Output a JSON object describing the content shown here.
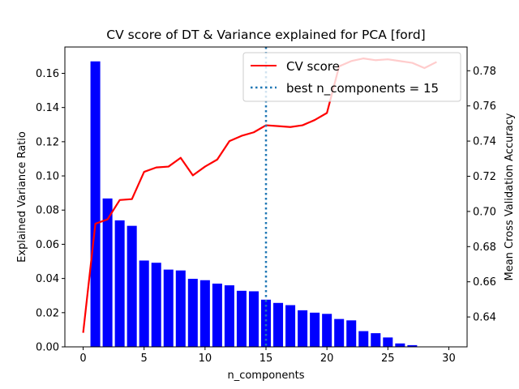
{
  "chart_data": {
    "type": "bar",
    "title": "CV score of DT & Variance explained for PCA [ford]",
    "xlabel": "n_components",
    "ylabel": "Explained Variance Ratio",
    "ylabel_right": "Mean Cross Validation Accuracy",
    "xlim": [
      -1.5,
      31.5
    ],
    "ylim": [
      0,
      0.1754
    ],
    "ylim_right": [
      0.623,
      0.7935
    ],
    "x_ticks": [
      "0",
      "5",
      "10",
      "15",
      "20",
      "25",
      "30"
    ],
    "y_ticks": [
      "0.00",
      "0.02",
      "0.04",
      "0.06",
      "0.08",
      "0.10",
      "0.12",
      "0.14",
      "0.16"
    ],
    "y_ticks_right": [
      "0.64",
      "0.66",
      "0.68",
      "0.70",
      "0.72",
      "0.74",
      "0.76",
      "0.78"
    ],
    "grid": false,
    "legend_position": "top-right",
    "series": [
      {
        "kind": "bar",
        "color": "#0000ff",
        "x": [
          1,
          2,
          3,
          4,
          5,
          6,
          7,
          8,
          9,
          10,
          11,
          12,
          13,
          14,
          15,
          16,
          17,
          18,
          19,
          20,
          21,
          22,
          23,
          24,
          25,
          26,
          27
        ],
        "values": [
          0.167,
          0.0868,
          0.074,
          0.0708,
          0.0505,
          0.0492,
          0.0452,
          0.0447,
          0.0398,
          0.039,
          0.037,
          0.036,
          0.0328,
          0.0325,
          0.0276,
          0.0257,
          0.0244,
          0.0214,
          0.02,
          0.0193,
          0.0163,
          0.0155,
          0.0092,
          0.008,
          0.0055,
          0.002,
          0.001
        ]
      },
      {
        "kind": "line",
        "name": "CV score",
        "color": "#ff0000",
        "axis": "right",
        "x": [
          0,
          1,
          2,
          3,
          4,
          5,
          6,
          7,
          8,
          9,
          10,
          11,
          12,
          13,
          14,
          15,
          16,
          17,
          18,
          19,
          20,
          21,
          22,
          23,
          24,
          25,
          26,
          27,
          28,
          29
        ],
        "values": [
          0.631,
          0.693,
          0.6955,
          0.7065,
          0.707,
          0.7225,
          0.725,
          0.7255,
          0.7305,
          0.7205,
          0.7255,
          0.7295,
          0.74,
          0.743,
          0.745,
          0.749,
          0.7485,
          0.748,
          0.749,
          0.752,
          0.756,
          0.7825,
          0.7855,
          0.787,
          0.786,
          0.7865,
          0.7855,
          0.7845,
          0.7815,
          0.785
        ]
      },
      {
        "kind": "vline",
        "name": "best n_components = 15",
        "color": "#1f77b4",
        "x": 15
      }
    ]
  }
}
